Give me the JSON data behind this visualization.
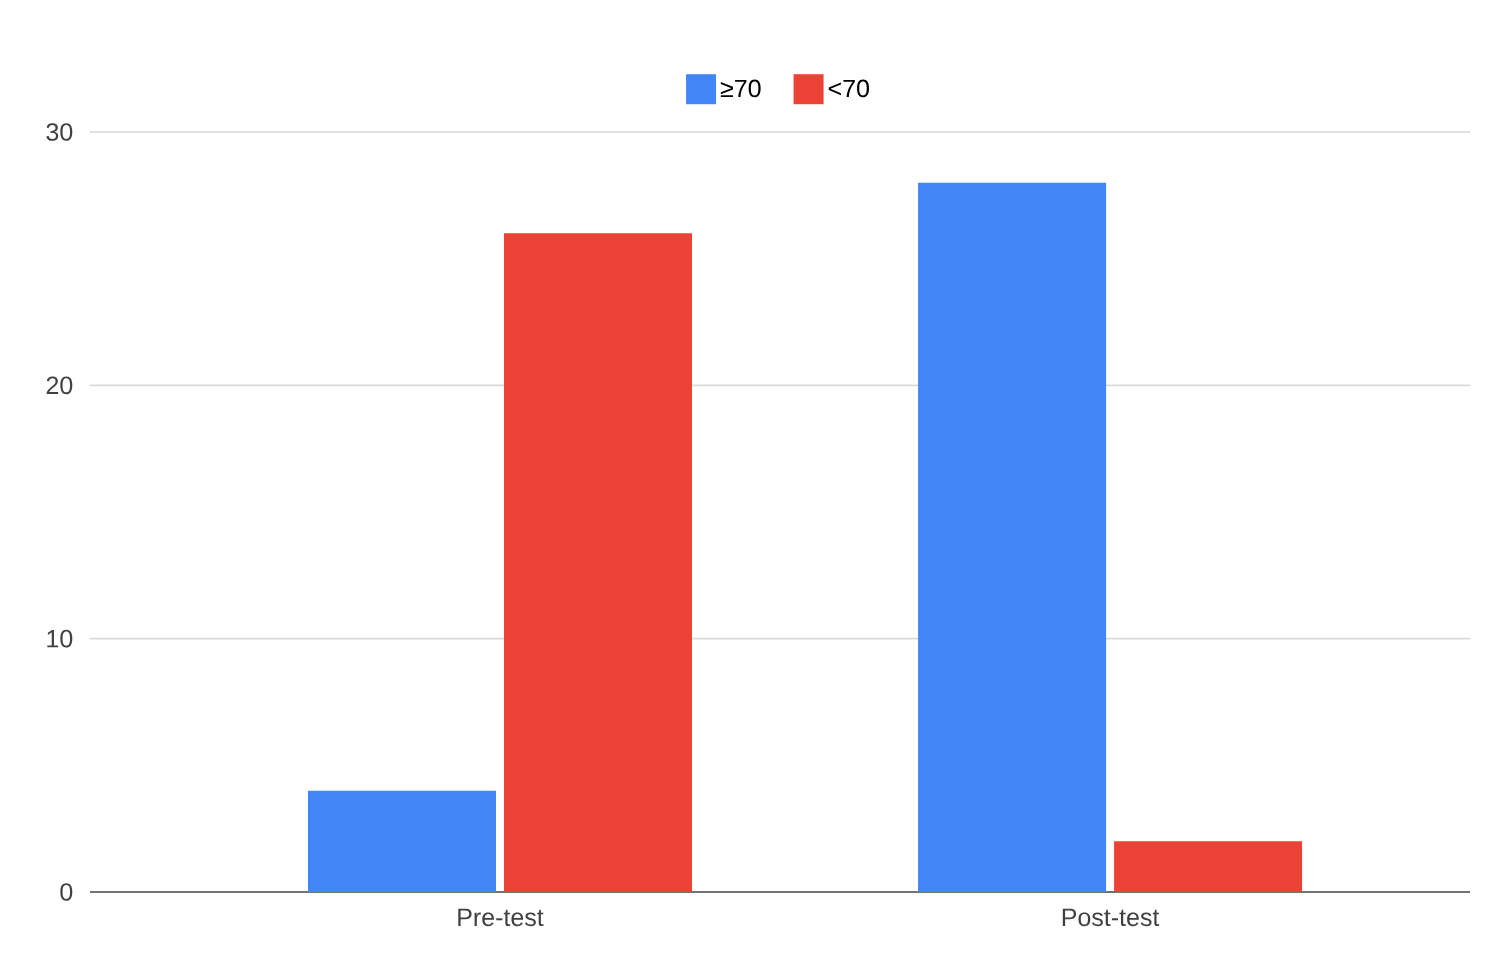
{
  "chart_data": {
    "type": "bar",
    "categories": [
      "Pre-test",
      "Post-test"
    ],
    "series": [
      {
        "name": "≥70",
        "color": "#4285f4",
        "values": [
          4,
          28
        ]
      },
      {
        "name": "<70",
        "color": "#ea4335",
        "values": [
          26,
          2
        ]
      }
    ],
    "ylim": [
      0,
      30
    ],
    "yticks": [
      0,
      10,
      20,
      30
    ],
    "grid": "y",
    "legend": "top"
  }
}
